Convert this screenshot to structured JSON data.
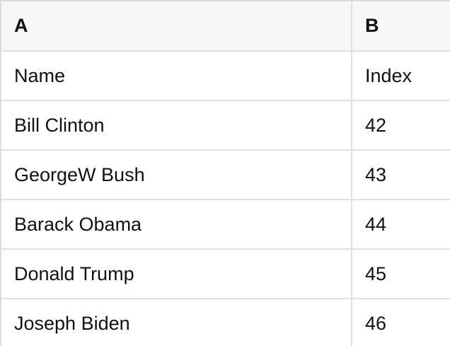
{
  "table": {
    "columns": [
      {
        "label": "A"
      },
      {
        "label": "B"
      }
    ],
    "rows": [
      [
        "Name",
        "Index"
      ],
      [
        "Bill Clinton",
        "42"
      ],
      [
        "GeorgeW Bush",
        "43"
      ],
      [
        "Barack Obama",
        "44"
      ],
      [
        "Donald Trump",
        "45"
      ],
      [
        "Joseph Biden",
        "46"
      ]
    ]
  },
  "colors": {
    "header_bg": "#f7f7f7",
    "border": "#e0e0e0",
    "outer_border": "#dcdcdc",
    "text": "#111111",
    "bg": "#ffffff"
  }
}
